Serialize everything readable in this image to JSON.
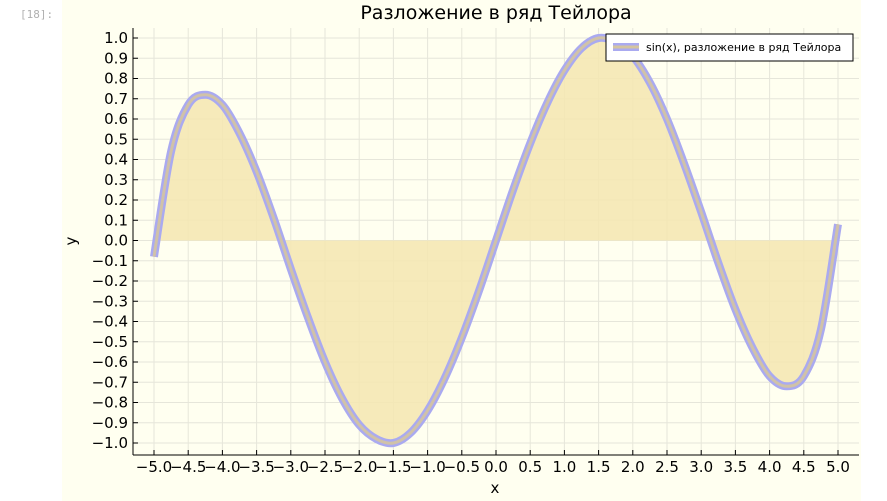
{
  "cell": {
    "prompt": "[18]:"
  },
  "colors": {
    "background": "#fffff0",
    "fill": "#f5e6b0",
    "line": "#aaaaf0",
    "inner_line": "#d4c4a0",
    "grid": "#e6e6da"
  },
  "chart_data": {
    "type": "line",
    "title": "Разложение в ряд Тейлора",
    "xlabel": "x",
    "ylabel": "y",
    "xlim": [
      -5.0,
      5.0
    ],
    "ylim": [
      -1.0,
      1.0
    ],
    "grid": true,
    "legend_position": "top-right",
    "xticks": [
      -5.0,
      -4.5,
      -4.0,
      -3.5,
      -3.0,
      -2.5,
      -2.0,
      -1.5,
      -1.0,
      -0.5,
      0.0,
      0.5,
      1.0,
      1.5,
      2.0,
      2.5,
      3.0,
      3.5,
      4.0,
      4.5,
      5.0
    ],
    "xtick_labels": [
      "−5.0",
      "−4.5",
      "−4.0",
      "−3.5",
      "−3.0",
      "−2.5",
      "−2.0",
      "−1.5",
      "−1.0",
      "−0.5",
      "0.0",
      "0.5",
      "1.0",
      "1.5",
      "2.0",
      "2.5",
      "3.0",
      "3.5",
      "4.0",
      "4.5",
      "5.0"
    ],
    "yticks": [
      -1.0,
      -0.9,
      -0.8,
      -0.7,
      -0.6,
      -0.5,
      -0.4,
      -0.3,
      -0.2,
      -0.1,
      0.0,
      0.1,
      0.2,
      0.3,
      0.4,
      0.5,
      0.6,
      0.7,
      0.8,
      0.9,
      1.0
    ],
    "ytick_labels": [
      "−1.0",
      "−0.9",
      "−0.8",
      "−0.7",
      "−0.6",
      "−0.5",
      "−0.4",
      "−0.3",
      "−0.2",
      "−0.1",
      "0.0",
      "0.1",
      "0.2",
      "0.3",
      "0.4",
      "0.5",
      "0.6",
      "0.7",
      "0.8",
      "0.9",
      "1.0"
    ],
    "series": [
      {
        "name": "sin(x), разложение в ряд Тейлора",
        "x": [
          -5.0,
          -4.75,
          -4.5,
          -4.25,
          -4.0,
          -3.75,
          -3.5,
          -3.25,
          -3.0,
          -2.75,
          -2.5,
          -2.25,
          -2.0,
          -1.75,
          -1.5,
          -1.25,
          -1.0,
          -0.75,
          -0.5,
          -0.25,
          0.0,
          0.25,
          0.5,
          0.75,
          1.0,
          1.25,
          1.5,
          1.75,
          2.0,
          2.25,
          2.5,
          2.75,
          3.0,
          3.25,
          3.5,
          3.75,
          4.0,
          4.25,
          4.5,
          4.75,
          5.0
        ],
        "y": [
          -0.08,
          0.44,
          0.67,
          0.72,
          0.67,
          0.53,
          0.34,
          0.11,
          -0.14,
          -0.38,
          -0.6,
          -0.78,
          -0.91,
          -0.98,
          -1.0,
          -0.95,
          -0.84,
          -0.68,
          -0.48,
          -0.25,
          0.0,
          0.25,
          0.48,
          0.68,
          0.84,
          0.95,
          1.0,
          0.98,
          0.91,
          0.78,
          0.6,
          0.38,
          0.14,
          -0.11,
          -0.34,
          -0.53,
          -0.67,
          -0.72,
          -0.67,
          -0.44,
          0.08
        ]
      }
    ]
  }
}
